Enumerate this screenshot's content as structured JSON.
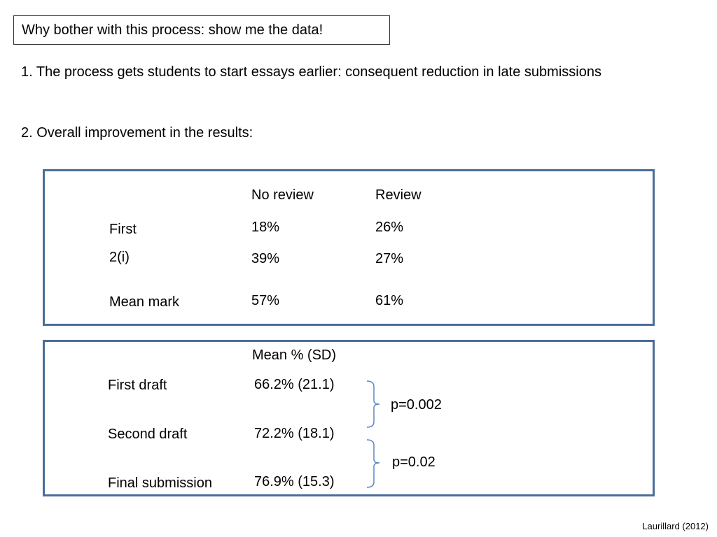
{
  "slide": {
    "title": "Why bother with this process: show me the data!",
    "points": [
      "1. The process gets students to start essays earlier: consequent reduction in late submissions",
      "2. Overall improvement in the results:"
    ]
  },
  "table1": {
    "headers": [
      "No review",
      "Review"
    ],
    "rows": [
      {
        "label": "First",
        "no_review": "18%",
        "review": "26%"
      },
      {
        "label": "2(i)",
        "no_review": "39%",
        "review": "27%"
      },
      {
        "label": "Mean mark",
        "no_review": "57%",
        "review": "61%"
      }
    ]
  },
  "table2": {
    "header": "Mean % (SD)",
    "rows": [
      {
        "label": "First draft",
        "value": "66.2% (21.1)"
      },
      {
        "label": "Second draft",
        "value": "72.2% (18.1)"
      },
      {
        "label": "Final submission",
        "value": "76.9% (15.3)"
      }
    ],
    "comparisons": [
      "p=0.002",
      "p=0.02"
    ]
  },
  "footer": {
    "citation": "Laurillard (2012)"
  },
  "colors": {
    "panel_border": "#4a6d9a",
    "bracket": "#5b87c5"
  }
}
